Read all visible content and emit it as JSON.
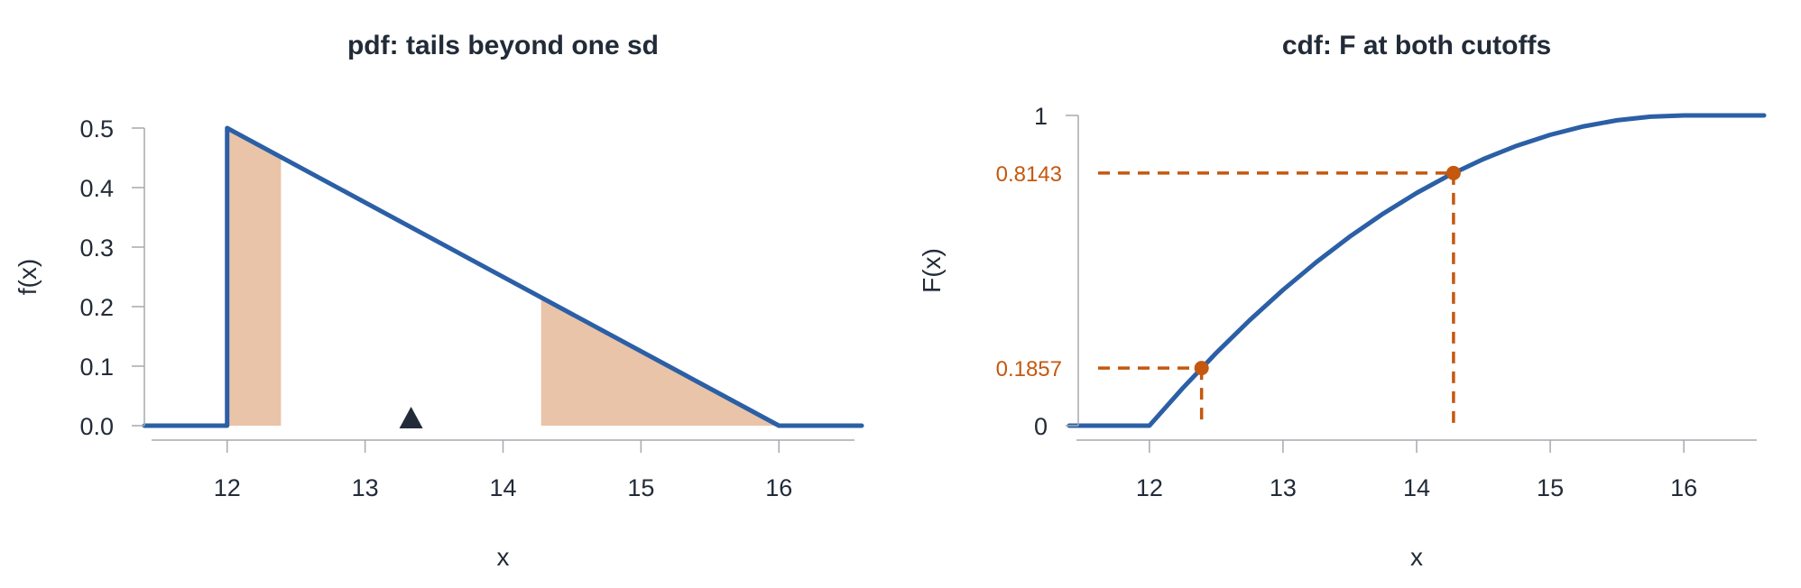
{
  "colors": {
    "curve": "#2b5fa6",
    "shade": "#e9c4a8",
    "accent": "#c4580f",
    "marker": "#222b38",
    "axis": "#a6a9ae",
    "text": "#222b38"
  },
  "chart_data": [
    {
      "type": "area",
      "title": "pdf: tails beyond one sd",
      "xlabel": "x",
      "ylabel": "f(x)",
      "xlim": [
        11.4,
        16.6
      ],
      "ylim": [
        0,
        0.5
      ],
      "x_ticks": [
        12,
        13,
        14,
        15,
        16
      ],
      "x_tick_labels": [
        "12",
        "13",
        "14",
        "15",
        "16"
      ],
      "y_ticks": [
        0,
        0.1,
        0.2,
        0.3,
        0.4,
        0.5
      ],
      "y_tick_labels": [
        "0.0",
        "0.1",
        "0.2",
        "0.3",
        "0.4",
        "0.5"
      ],
      "grid": false,
      "series": [
        {
          "x": [
            11.4,
            12,
            12,
            16,
            16.6
          ],
          "y": [
            0,
            0,
            0.5,
            0,
            0
          ]
        }
      ],
      "shaded_regions": [
        {
          "x_from": 12,
          "x_to": 12.3905
        },
        {
          "x_from": 14.2761,
          "x_to": 16
        }
      ],
      "marker": {
        "shape": "triangle",
        "x": 13.3333,
        "y": 0
      }
    },
    {
      "type": "line",
      "title": "cdf: F at both cutoffs",
      "xlabel": "x",
      "ylabel": "F(x)",
      "xlim": [
        11.4,
        16.6
      ],
      "ylim": [
        0,
        1
      ],
      "x_ticks": [
        12,
        13,
        14,
        15,
        16
      ],
      "x_tick_labels": [
        "12",
        "13",
        "14",
        "15",
        "16"
      ],
      "y_ticks": [
        0,
        1
      ],
      "y_tick_labels": [
        "0",
        "1"
      ],
      "grid": false,
      "series": [
        {
          "x": [
            11.4,
            12,
            12.25,
            12.5,
            12.75,
            13,
            13.25,
            13.5,
            13.75,
            14,
            14.25,
            14.5,
            14.75,
            15,
            15.25,
            15.5,
            15.75,
            16,
            16.6
          ],
          "y": [
            0,
            0,
            0.1211,
            0.2344,
            0.3398,
            0.4375,
            0.5273,
            0.6094,
            0.6836,
            0.75,
            0.8086,
            0.8594,
            0.9023,
            0.9375,
            0.9648,
            0.9844,
            0.9961,
            1,
            1
          ]
        }
      ],
      "reference_points": [
        {
          "x": 12.3905,
          "y": 0.1857,
          "label": "0.1857"
        },
        {
          "x": 14.2761,
          "y": 0.8143,
          "label": "0.8143"
        }
      ]
    }
  ]
}
